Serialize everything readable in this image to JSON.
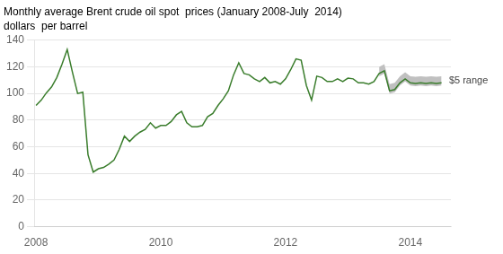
{
  "chart_data": {
    "type": "line",
    "title": "Monthly average Brent crude oil spot  prices (January 2008-July  2014)",
    "subtitle": "dollars  per barrel",
    "x": [
      2008,
      2008.0833333333333,
      2008.1666666666667,
      2008.25,
      2008.3333333333333,
      2008.4166666666667,
      2008.5,
      2008.5833333333333,
      2008.6666666666667,
      2008.75,
      2008.8333333333333,
      2008.9166666666667,
      2009,
      2009.0833333333333,
      2009.1666666666667,
      2009.25,
      2009.3333333333333,
      2009.4166666666667,
      2009.5,
      2009.5833333333333,
      2009.6666666666667,
      2009.75,
      2009.8333333333333,
      2009.9166666666667,
      2010,
      2010.0833333333333,
      2010.1666666666667,
      2010.25,
      2010.3333333333333,
      2010.4166666666667,
      2010.5,
      2010.5833333333333,
      2010.6666666666667,
      2010.75,
      2010.8333333333333,
      2010.9166666666667,
      2011,
      2011.0833333333333,
      2011.1666666666667,
      2011.25,
      2011.3333333333333,
      2011.4166666666667,
      2011.5,
      2011.5833333333333,
      2011.6666666666667,
      2011.75,
      2011.8333333333333,
      2011.9166666666667,
      2012,
      2012.0833333333333,
      2012.1666666666667,
      2012.25,
      2012.3333333333333,
      2012.4166666666667,
      2012.5,
      2012.5833333333333,
      2012.6666666666667,
      2012.75,
      2012.8333333333333,
      2012.9166666666667,
      2013,
      2013.0833333333333,
      2013.1666666666667,
      2013.25,
      2013.3333333333333,
      2013.4166666666667,
      2013.5,
      2013.5833333333333,
      2013.6666666666667,
      2013.75,
      2013.8333333333333,
      2013.9166666666667,
      2014,
      2014.0833333333333,
      2014.1666666666667,
      2014.25,
      2014.3333333333333,
      2014.4166666666667,
      2014.5
    ],
    "values": [
      91.0,
      95.0,
      100.5,
      105.0,
      112.0,
      122.0,
      133.0,
      116.0,
      100.0,
      101.0,
      54.0,
      41.0,
      43.5,
      44.5,
      47.0,
      50.0,
      58.0,
      68.0,
      64.0,
      68.0,
      71.0,
      73.0,
      78.0,
      74.0,
      76.0,
      76.0,
      79.0,
      84.0,
      86.5,
      78.0,
      75.0,
      75.0,
      76.0,
      82.5,
      85.0,
      91.0,
      96.0,
      102.0,
      114.0,
      123.0,
      115.0,
      114.0,
      111.0,
      109.0,
      112.0,
      108.0,
      109.0,
      107.0,
      111.0,
      118.0,
      126.0,
      125.0,
      106.0,
      95.0,
      113.0,
      112.0,
      109.0,
      109.0,
      111.0,
      109.0,
      111.5,
      111.0,
      108.0,
      108.0,
      107.0,
      109.0,
      115.0,
      117.0,
      102.0,
      103.0,
      108.0,
      111.0,
      108.0,
      107.5,
      108.0,
      107.5,
      108.0,
      107.5,
      108.0
    ],
    "color": "#3a7d2c",
    "band": {
      "x": [
        2013.5,
        2013.5833333333333,
        2013.6666666666667,
        2013.75,
        2013.8333333333333,
        2013.9166666666667,
        2014,
        2014.0833333333333,
        2014.1666666666667,
        2014.25,
        2014.3333333333333,
        2014.4166666666667,
        2014.5
      ],
      "lower": [
        113.0,
        115.0,
        100.0,
        101.0,
        106.0,
        109.0,
        106.0,
        105.5,
        106.0,
        105.5,
        106.0,
        105.5,
        106.0
      ],
      "upper": [
        120.0,
        122.0,
        107.0,
        108.0,
        113.0,
        116.0,
        113.0,
        112.5,
        113.0,
        112.5,
        113.0,
        112.5,
        113.0
      ],
      "color": "#c0c0c0"
    },
    "annotations": [
      {
        "text": "$5 range",
        "x": 2014.62,
        "y": 109.5
      }
    ],
    "xlim": [
      2007.97,
      2014.65
    ],
    "xticks": [
      2008,
      2010,
      2012,
      2014
    ],
    "ylim": [
      0,
      140
    ],
    "yticks": [
      0,
      20,
      40,
      60,
      80,
      100,
      120,
      140
    ],
    "grid": true
  }
}
